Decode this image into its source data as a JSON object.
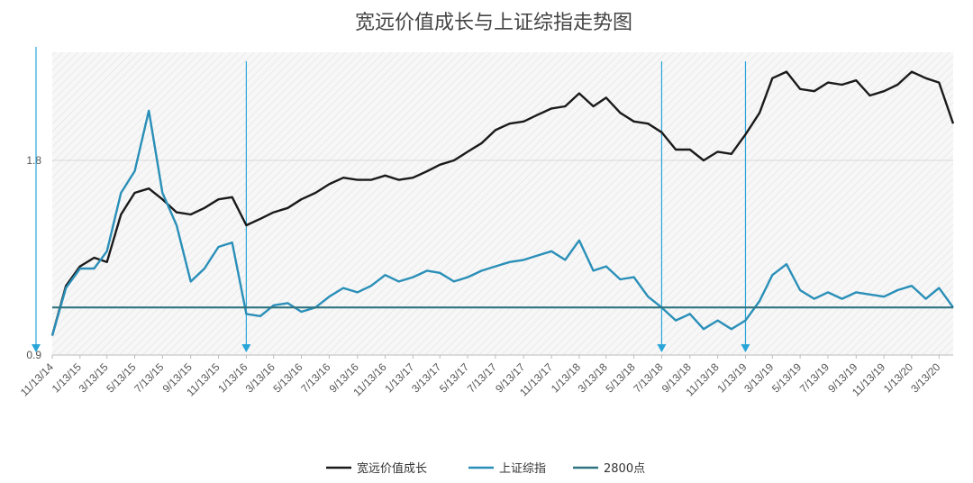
{
  "chart_data": {
    "type": "line",
    "title": "宽远价值成长与上证综指走势图",
    "xlabel": "",
    "ylabel": "",
    "x_tick_labels": [
      "11/13/14",
      "1/13/15",
      "3/13/15",
      "5/13/15",
      "7/13/15",
      "9/13/15",
      "11/13/15",
      "1/13/16",
      "3/13/16",
      "5/13/16",
      "7/13/16",
      "9/13/16",
      "11/13/16",
      "1/13/17",
      "3/13/17",
      "5/13/17",
      "7/13/17",
      "9/13/17",
      "11/13/17",
      "1/13/18",
      "3/13/18",
      "5/13/18",
      "7/13/18",
      "9/13/18",
      "11/13/18",
      "1/13/19",
      "3/13/19",
      "5/13/19",
      "7/13/19",
      "9/13/19",
      "11/13/19",
      "1/13/20",
      "3/13/20"
    ],
    "y_tick_labels": [
      "0.9",
      "1.8"
    ],
    "ylim": [
      0.9,
      2.3
    ],
    "grid": "horizontal",
    "legend_position": "bottom",
    "colors": {
      "fund": "#1a1a1a",
      "index": "#2a8fb8",
      "baseline": "#2f7480",
      "arrow": "#29a6d8",
      "hatch_bg": "#f1f1f1"
    },
    "marker_dates": [
      "11/13/14",
      "1/13/16",
      "7/13/18",
      "1/13/19"
    ],
    "series": [
      {
        "name": "宽远价值成长",
        "key": "fund",
        "points": [
          [
            "11/13/14",
            0.99
          ],
          [
            "12/13/14",
            1.22
          ],
          [
            "1/13/15",
            1.31
          ],
          [
            "2/13/15",
            1.35
          ],
          [
            "3/13/15",
            1.33
          ],
          [
            "4/13/15",
            1.55
          ],
          [
            "5/13/15",
            1.65
          ],
          [
            "6/13/15",
            1.67
          ],
          [
            "7/13/15",
            1.62
          ],
          [
            "8/13/15",
            1.56
          ],
          [
            "9/13/15",
            1.55
          ],
          [
            "10/13/15",
            1.58
          ],
          [
            "11/13/15",
            1.62
          ],
          [
            "12/13/15",
            1.63
          ],
          [
            "1/13/16",
            1.5
          ],
          [
            "2/13/16",
            1.53
          ],
          [
            "3/13/16",
            1.56
          ],
          [
            "4/13/16",
            1.58
          ],
          [
            "5/13/16",
            1.62
          ],
          [
            "6/13/16",
            1.65
          ],
          [
            "7/13/16",
            1.69
          ],
          [
            "8/13/16",
            1.72
          ],
          [
            "9/13/16",
            1.71
          ],
          [
            "10/13/16",
            1.71
          ],
          [
            "11/13/16",
            1.73
          ],
          [
            "12/13/16",
            1.71
          ],
          [
            "1/13/17",
            1.72
          ],
          [
            "2/13/17",
            1.75
          ],
          [
            "3/13/17",
            1.78
          ],
          [
            "4/13/17",
            1.8
          ],
          [
            "5/13/17",
            1.84
          ],
          [
            "6/13/17",
            1.88
          ],
          [
            "7/13/17",
            1.94
          ],
          [
            "8/13/17",
            1.97
          ],
          [
            "9/13/17",
            1.98
          ],
          [
            "10/13/17",
            2.01
          ],
          [
            "11/13/17",
            2.04
          ],
          [
            "12/13/17",
            2.05
          ],
          [
            "1/13/18",
            2.11
          ],
          [
            "2/13/18",
            2.05
          ],
          [
            "3/13/18",
            2.09
          ],
          [
            "4/13/18",
            2.02
          ],
          [
            "5/13/18",
            1.98
          ],
          [
            "6/13/18",
            1.97
          ],
          [
            "7/13/18",
            1.93
          ],
          [
            "8/13/18",
            1.85
          ],
          [
            "9/13/18",
            1.85
          ],
          [
            "10/13/18",
            1.8
          ],
          [
            "11/13/18",
            1.84
          ],
          [
            "12/13/18",
            1.83
          ],
          [
            "1/13/19",
            1.92
          ],
          [
            "2/13/19",
            2.02
          ],
          [
            "3/13/19",
            2.18
          ],
          [
            "4/13/19",
            2.21
          ],
          [
            "5/13/19",
            2.13
          ],
          [
            "6/13/19",
            2.12
          ],
          [
            "7/13/19",
            2.16
          ],
          [
            "8/13/19",
            2.15
          ],
          [
            "9/13/19",
            2.17
          ],
          [
            "10/13/19",
            2.1
          ],
          [
            "11/13/19",
            2.12
          ],
          [
            "12/13/19",
            2.15
          ],
          [
            "1/13/20",
            2.21
          ],
          [
            "2/13/20",
            2.18
          ],
          [
            "3/13/20",
            2.16
          ],
          [
            "4/13/20",
            1.97
          ]
        ]
      },
      {
        "name": "上证综指",
        "key": "index",
        "points": [
          [
            "11/13/14",
            0.99
          ],
          [
            "12/13/14",
            1.21
          ],
          [
            "1/13/15",
            1.3
          ],
          [
            "2/13/15",
            1.3
          ],
          [
            "3/13/15",
            1.38
          ],
          [
            "4/13/15",
            1.65
          ],
          [
            "5/13/15",
            1.75
          ],
          [
            "6/13/15",
            2.03
          ],
          [
            "7/13/15",
            1.65
          ],
          [
            "8/13/15",
            1.5
          ],
          [
            "9/13/15",
            1.24
          ],
          [
            "10/13/15",
            1.3
          ],
          [
            "11/13/15",
            1.4
          ],
          [
            "12/13/15",
            1.42
          ],
          [
            "1/13/16",
            1.09
          ],
          [
            "2/13/16",
            1.08
          ],
          [
            "3/13/16",
            1.13
          ],
          [
            "4/13/16",
            1.14
          ],
          [
            "5/13/16",
            1.1
          ],
          [
            "6/13/16",
            1.12
          ],
          [
            "7/13/16",
            1.17
          ],
          [
            "8/13/16",
            1.21
          ],
          [
            "9/13/16",
            1.19
          ],
          [
            "10/13/16",
            1.22
          ],
          [
            "11/13/16",
            1.27
          ],
          [
            "12/13/16",
            1.24
          ],
          [
            "1/13/17",
            1.26
          ],
          [
            "2/13/17",
            1.29
          ],
          [
            "3/13/17",
            1.28
          ],
          [
            "4/13/17",
            1.24
          ],
          [
            "5/13/17",
            1.26
          ],
          [
            "6/13/17",
            1.29
          ],
          [
            "7/13/17",
            1.31
          ],
          [
            "8/13/17",
            1.33
          ],
          [
            "9/13/17",
            1.34
          ],
          [
            "10/13/17",
            1.36
          ],
          [
            "11/13/17",
            1.38
          ],
          [
            "12/13/17",
            1.34
          ],
          [
            "1/13/18",
            1.43
          ],
          [
            "2/13/18",
            1.29
          ],
          [
            "3/13/18",
            1.31
          ],
          [
            "4/13/18",
            1.25
          ],
          [
            "5/13/18",
            1.26
          ],
          [
            "6/13/18",
            1.17
          ],
          [
            "7/13/18",
            1.12
          ],
          [
            "8/13/18",
            1.06
          ],
          [
            "9/13/18",
            1.09
          ],
          [
            "10/13/18",
            1.02
          ],
          [
            "11/13/18",
            1.06
          ],
          [
            "12/13/18",
            1.02
          ],
          [
            "1/13/19",
            1.06
          ],
          [
            "2/13/19",
            1.15
          ],
          [
            "3/13/19",
            1.27
          ],
          [
            "4/13/19",
            1.32
          ],
          [
            "5/13/19",
            1.2
          ],
          [
            "6/13/19",
            1.16
          ],
          [
            "7/13/19",
            1.19
          ],
          [
            "8/13/19",
            1.16
          ],
          [
            "9/13/19",
            1.19
          ],
          [
            "10/13/19",
            1.18
          ],
          [
            "11/13/19",
            1.17
          ],
          [
            "12/13/19",
            1.2
          ],
          [
            "1/13/20",
            1.22
          ],
          [
            "2/13/20",
            1.16
          ],
          [
            "3/13/20",
            1.21
          ],
          [
            "4/13/20",
            1.12
          ]
        ]
      },
      {
        "name": "2800点",
        "key": "baseline",
        "points": [
          [
            "11/13/14",
            1.12
          ],
          [
            "4/13/20",
            1.12
          ]
        ]
      }
    ]
  }
}
